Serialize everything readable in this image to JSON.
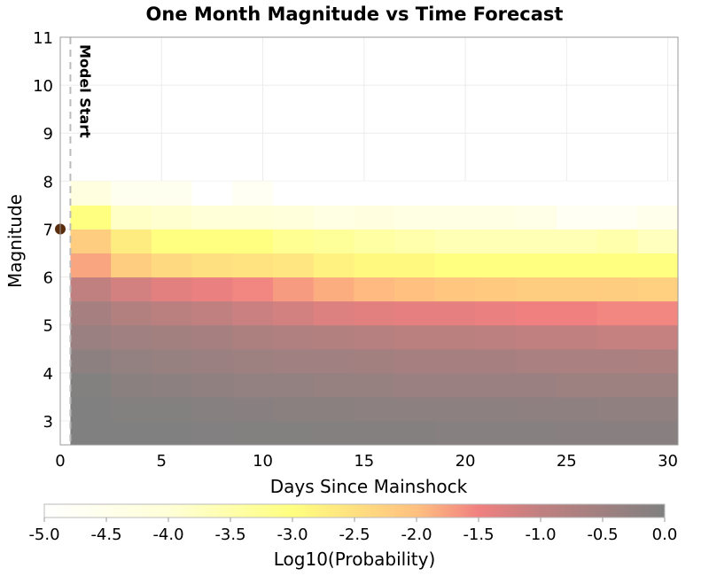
{
  "chart_data": {
    "type": "heatmap",
    "title": "One Month Magnitude vs Time Forecast",
    "xlabel": "Days Since Mainshock",
    "ylabel": "Magnitude",
    "xlim": [
      0,
      30.5
    ],
    "ylim": [
      2.5,
      11
    ],
    "x_ticks": [
      "0",
      "5",
      "10",
      "15",
      "20",
      "25",
      "30"
    ],
    "x_tick_values": [
      0,
      5,
      10,
      15,
      20,
      25,
      30
    ],
    "y_ticks": [
      "3",
      "4",
      "5",
      "6",
      "7",
      "8",
      "9",
      "10",
      "11"
    ],
    "y_tick_values": [
      3,
      4,
      5,
      6,
      7,
      8,
      9,
      10,
      11
    ],
    "grid": true,
    "x_bin_edges": [
      0.5,
      2.5,
      4.5,
      6.5,
      8.5,
      10.5,
      12.5,
      14.5,
      16.5,
      18.5,
      20.5,
      22.5,
      24.5,
      26.5,
      28.5,
      30.5
    ],
    "magnitude_bin_edges": [
      2.5,
      3.0,
      3.5,
      4.0,
      4.5,
      5.0,
      5.5,
      6.0,
      6.5,
      7.0,
      7.5,
      8.0
    ],
    "log10_probability_rows_low_to_high": [
      [
        0,
        -0.02,
        -0.02,
        -0.03,
        -0.05,
        -0.05,
        -0.06,
        -0.08,
        -0.08,
        -0.1,
        -0.1,
        -0.1,
        -0.12,
        -0.12,
        -0.12
      ],
      [
        -0.02,
        -0.05,
        -0.05,
        -0.1,
        -0.12,
        -0.15,
        -0.15,
        -0.2,
        -0.2,
        -0.2,
        -0.2,
        -0.22,
        -0.22,
        -0.25,
        -0.25
      ],
      [
        -0.05,
        -0.15,
        -0.2,
        -0.25,
        -0.3,
        -0.3,
        -0.35,
        -0.35,
        -0.4,
        -0.4,
        -0.4,
        -0.4,
        -0.45,
        -0.45,
        -0.45
      ],
      [
        -0.2,
        -0.3,
        -0.35,
        -0.4,
        -0.45,
        -0.5,
        -0.5,
        -0.55,
        -0.6,
        -0.6,
        -0.6,
        -0.65,
        -0.65,
        -0.65,
        -0.7
      ],
      [
        -0.4,
        -0.5,
        -0.55,
        -0.6,
        -0.7,
        -0.75,
        -0.8,
        -0.85,
        -0.9,
        -0.9,
        -0.95,
        -1.0,
        -1.0,
        -1.05,
        -1.05
      ],
      [
        -0.6,
        -0.8,
        -0.9,
        -1.0,
        -1.1,
        -1.2,
        -1.3,
        -1.35,
        -1.4,
        -1.4,
        -1.45,
        -1.5,
        -1.5,
        -1.55,
        -1.55
      ],
      [
        -1.0,
        -1.2,
        -1.35,
        -1.45,
        -1.55,
        -1.7,
        -1.85,
        -1.95,
        -2.0,
        -2.1,
        -2.15,
        -2.2,
        -2.2,
        -2.2,
        -2.25
      ],
      [
        -1.8,
        -2.2,
        -2.4,
        -2.5,
        -2.55,
        -2.6,
        -2.8,
        -2.9,
        -2.9,
        -3.0,
        -3.0,
        -3.0,
        -3.0,
        -3.0,
        -3.0
      ],
      [
        -2.2,
        -2.7,
        -3.0,
        -3.0,
        -3.0,
        -3.2,
        -3.3,
        -3.4,
        -3.5,
        -3.6,
        -3.6,
        -3.6,
        -3.6,
        -3.5,
        -3.7
      ],
      [
        -3.0,
        -3.8,
        -3.9,
        -4.0,
        -4.0,
        -4.1,
        -4.3,
        -4.2,
        -4.3,
        -4.3,
        -4.3,
        -4.4,
        -4.7,
        -4.7,
        -4.5
      ],
      [
        -4.2,
        -4.6,
        -4.6,
        -5.0,
        -4.7,
        -5.0,
        -5.0,
        -5.0,
        -5.0,
        -5.0,
        -5.0,
        -5.0,
        -5.0,
        -5.0,
        -5.0
      ]
    ],
    "mainshock": {
      "day": 0,
      "magnitude": 7.0,
      "color": "#5a2d0c"
    },
    "model_start": {
      "day": 0.5,
      "label": "Model Start"
    },
    "colorbar": {
      "label": "Log10(Probability)",
      "range": [
        -5.0,
        0.0
      ],
      "ticks": [
        "-5.0",
        "-4.5",
        "-4.0",
        "-3.5",
        "-3.0",
        "-2.5",
        "-2.0",
        "-1.5",
        "-1.0",
        "-0.5",
        "0.0"
      ],
      "tick_values": [
        -5,
        -4.5,
        -4,
        -3.5,
        -3,
        -2.5,
        -2,
        -1.5,
        -1,
        -0.5,
        0
      ],
      "colors": [
        {
          "v": -5,
          "c": "#ffffff"
        },
        {
          "v": -4,
          "c": "#ffffd8"
        },
        {
          "v": -3,
          "c": "#ffff80"
        },
        {
          "v": -2,
          "c": "#ffc080"
        },
        {
          "v": -1.5,
          "c": "#f08080"
        },
        {
          "v": -1,
          "c": "#c08080"
        },
        {
          "v": 0,
          "c": "#808080"
        }
      ]
    }
  }
}
